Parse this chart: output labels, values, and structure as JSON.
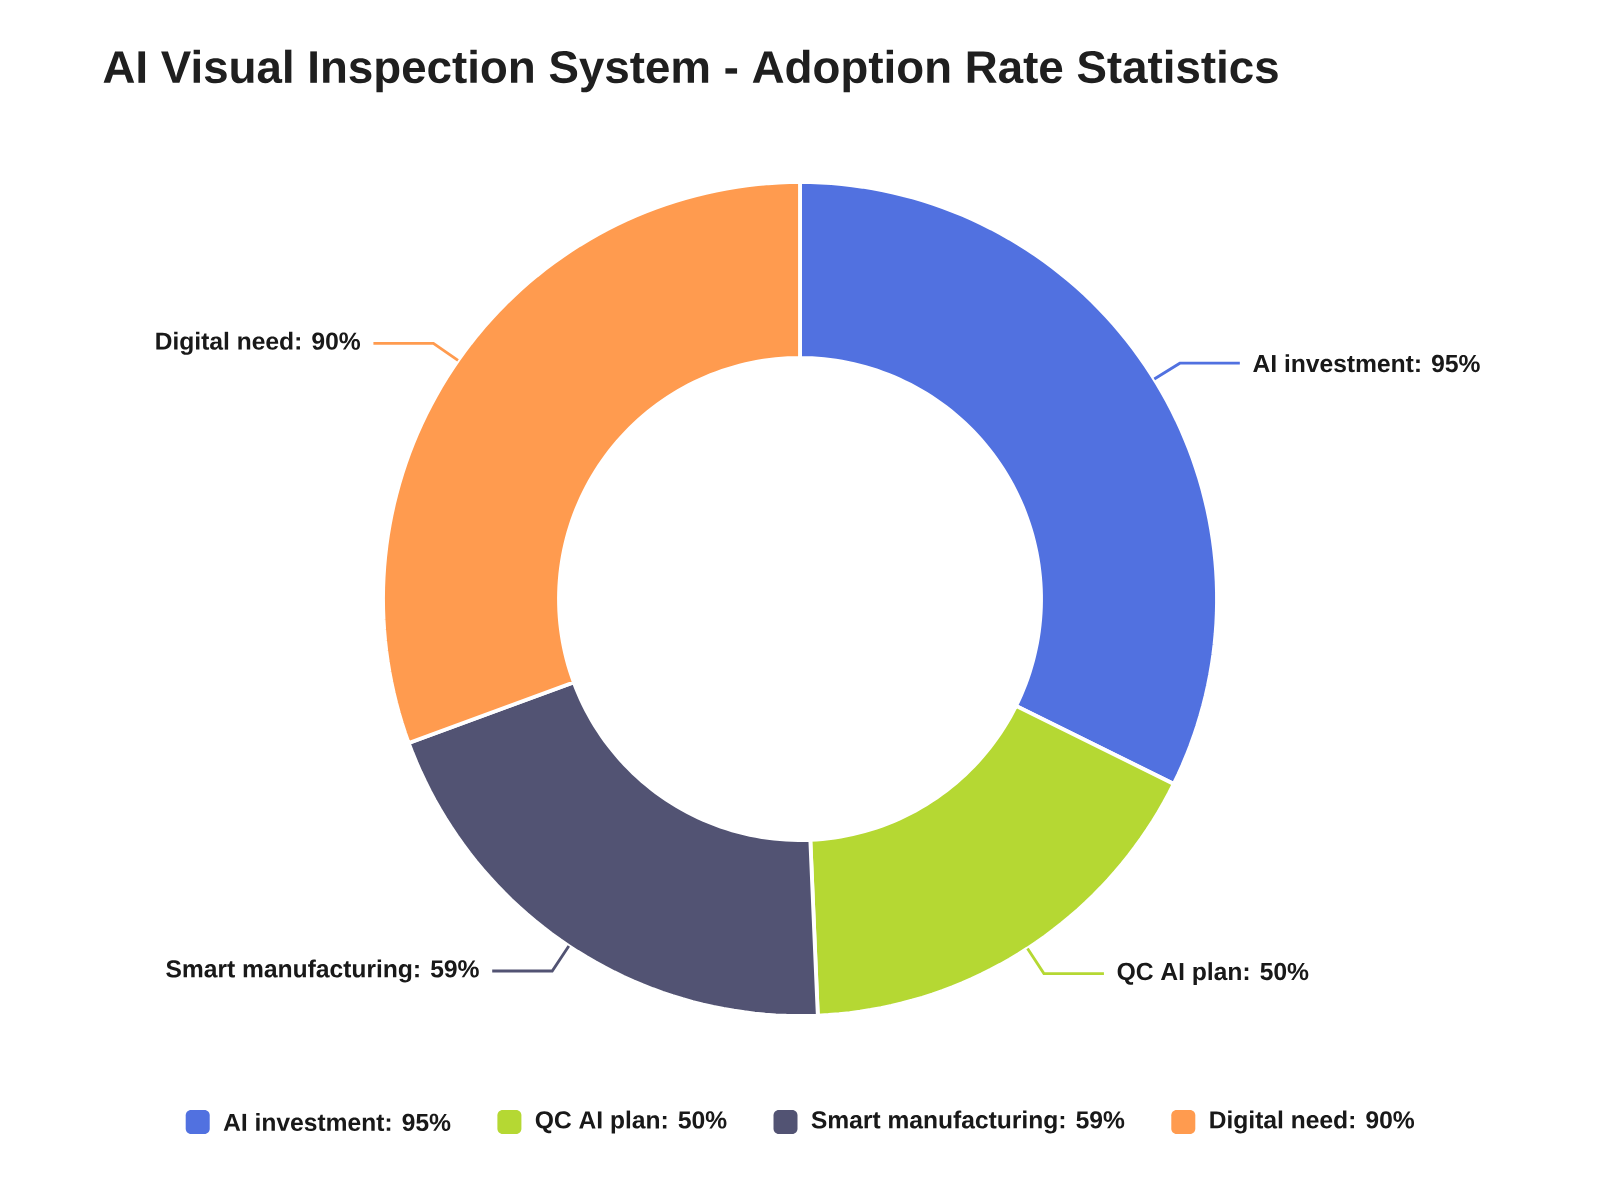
{
  "chart_data": {
    "type": "donut",
    "title": "AI Visual Inspection System - Adoption Rate Statistics",
    "categories": [
      "AI investment: 95%",
      "QC AI plan: 50%",
      "Smart manufacturing: 59%",
      "Digital need: 90%"
    ],
    "values": [
      95,
      50,
      59,
      90
    ],
    "colors": [
      "#5171e0",
      "#b5d833",
      "#525373",
      "#ff9b4f"
    ],
    "legend": "bottom"
  }
}
